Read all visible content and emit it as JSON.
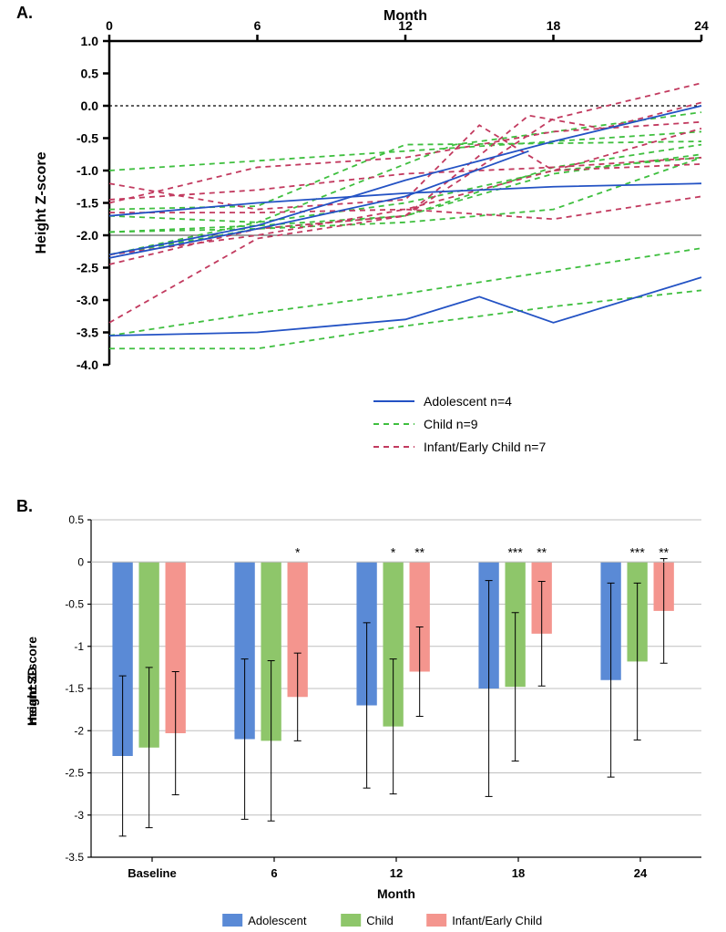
{
  "panelA": {
    "label": "A.",
    "type": "line",
    "x_title": "Month",
    "y_title": "Height Z-score",
    "x_ticks": [
      0,
      6,
      12,
      18,
      24
    ],
    "y_ticks": [
      1.0,
      0.5,
      0.0,
      -0.5,
      -1.0,
      -1.5,
      -2.0,
      -2.5,
      -3.0,
      -3.5,
      -4.0
    ],
    "y_tick_labels": [
      "1.0",
      "0.5",
      "0.0",
      "-0.5",
      "-1.0",
      "-1.5",
      "-2.0",
      "-2.5",
      "-3.0",
      "-3.5",
      "-4.0"
    ],
    "xlim": [
      0,
      24
    ],
    "ylim": [
      -4.0,
      1.0
    ],
    "zero_line_y": 0.0,
    "zero_line_dash": "3,3",
    "ref_line_y": -2.0,
    "axis_color": "#000000",
    "axis_width": 2.5,
    "line_width": 1.8,
    "series": {
      "adolescent": {
        "color": "#2352c4",
        "dash": "",
        "lines": [
          [
            [
              0,
              -2.35
            ],
            [
              6,
              -1.9
            ],
            [
              12,
              -1.4
            ],
            [
              17,
              -0.7
            ]
          ],
          [
            [
              0,
              -1.7
            ],
            [
              6,
              -1.5
            ],
            [
              12,
              -1.35
            ],
            [
              18,
              -1.25
            ],
            [
              24,
              -1.2
            ]
          ],
          [
            [
              0,
              -2.3
            ],
            [
              6,
              -1.85
            ],
            [
              12,
              -1.15
            ],
            [
              18,
              -0.55
            ],
            [
              24,
              0.0
            ]
          ],
          [
            [
              0,
              -3.55
            ],
            [
              6,
              -3.5
            ],
            [
              12,
              -3.3
            ],
            [
              15,
              -2.95
            ],
            [
              18,
              -3.35
            ],
            [
              24,
              -2.65
            ]
          ]
        ]
      },
      "child": {
        "color": "#3fbf3f",
        "dash": "6,5",
        "lines": [
          [
            [
              0,
              -1.0
            ],
            [
              6,
              -0.85
            ],
            [
              12,
              -0.7
            ],
            [
              18,
              -0.55
            ],
            [
              24,
              -0.4
            ]
          ],
          [
            [
              0,
              -1.7
            ],
            [
              6,
              -1.8
            ],
            [
              12,
              -1.5
            ],
            [
              18,
              -1.0
            ],
            [
              24,
              -0.8
            ]
          ],
          [
            [
              0,
              -1.95
            ],
            [
              6,
              -1.85
            ],
            [
              12,
              -1.7
            ],
            [
              18,
              -1.05
            ],
            [
              24,
              -0.75
            ]
          ],
          [
            [
              0,
              -1.95
            ],
            [
              6,
              -1.9
            ],
            [
              12,
              -1.8
            ],
            [
              18,
              -1.6
            ],
            [
              24,
              -0.8
            ]
          ],
          [
            [
              0,
              -1.6
            ],
            [
              6,
              -1.55
            ],
            [
              12,
              -0.6
            ],
            [
              18,
              -0.58
            ],
            [
              24,
              -0.55
            ]
          ],
          [
            [
              0,
              -3.55
            ],
            [
              6,
              -3.2
            ],
            [
              12,
              -2.9
            ],
            [
              18,
              -2.55
            ],
            [
              24,
              -2.2
            ]
          ],
          [
            [
              0,
              -3.75
            ],
            [
              6,
              -3.75
            ],
            [
              12,
              -3.4
            ],
            [
              18,
              -3.1
            ],
            [
              24,
              -2.85
            ]
          ],
          [
            [
              0,
              -2.3
            ],
            [
              6,
              -1.9
            ],
            [
              12,
              -1.7
            ],
            [
              18,
              -0.95
            ],
            [
              24,
              -0.6
            ]
          ],
          [
            [
              0,
              -2.3
            ],
            [
              6,
              -1.8
            ],
            [
              12,
              -0.9
            ],
            [
              14,
              -0.6
            ],
            [
              18,
              -0.4
            ],
            [
              24,
              -0.1
            ]
          ]
        ]
      },
      "infant": {
        "color": "#c23a5f",
        "dash": "6,5",
        "lines": [
          [
            [
              0,
              -1.65
            ],
            [
              6,
              -1.65
            ],
            [
              12,
              -1.6
            ],
            [
              18,
              -1.0
            ],
            [
              24,
              -0.35
            ]
          ],
          [
            [
              0,
              -1.45
            ],
            [
              6,
              -1.3
            ],
            [
              12,
              -1.05
            ],
            [
              18,
              -0.95
            ],
            [
              24,
              -0.8
            ]
          ],
          [
            [
              0,
              -1.2
            ],
            [
              6,
              -1.6
            ],
            [
              12,
              -1.45
            ],
            [
              15,
              -0.3
            ],
            [
              18,
              -1.0
            ],
            [
              24,
              -0.9
            ]
          ],
          [
            [
              0,
              -2.3
            ],
            [
              6,
              -2.0
            ],
            [
              12,
              -1.6
            ],
            [
              18,
              -1.75
            ],
            [
              24,
              -1.4
            ]
          ],
          [
            [
              0,
              -2.45
            ],
            [
              6,
              -1.9
            ],
            [
              12,
              -1.7
            ],
            [
              17,
              -0.15
            ],
            [
              20,
              -0.35
            ],
            [
              24,
              0.05
            ]
          ],
          [
            [
              0,
              -3.35
            ],
            [
              6,
              -2.05
            ],
            [
              12,
              -1.7
            ],
            [
              18,
              -0.2
            ],
            [
              24,
              0.35
            ]
          ],
          [
            [
              0,
              -1.5
            ],
            [
              6,
              -0.95
            ],
            [
              12,
              -0.8
            ],
            [
              18,
              -0.4
            ],
            [
              24,
              -0.25
            ]
          ]
        ]
      }
    },
    "legend": [
      {
        "label": "Adolescent  n=4",
        "color": "#2352c4",
        "dash": ""
      },
      {
        "label": "Child  n=9",
        "color": "#3fbf3f",
        "dash": "6,5"
      },
      {
        "label": "Infant/Early Child  n=7",
        "color": "#c23a5f",
        "dash": "6,5"
      }
    ]
  },
  "panelB": {
    "label": "B.",
    "type": "bar",
    "x_title": "Month",
    "y_title": "Height Z-score\nmean±SD",
    "categories": [
      "Baseline",
      "6",
      "12",
      "18",
      "24"
    ],
    "y_ticks": [
      0.5,
      0,
      -0.5,
      -1,
      -1.5,
      -2,
      -2.5,
      -3,
      -3.5
    ],
    "y_tick_labels": [
      "0.5",
      "0",
      "-0.5",
      "-1",
      "-1.5",
      "-2",
      "-2.5",
      "-3",
      "-3.5"
    ],
    "ylim": [
      -3.5,
      0.5
    ],
    "axis_color": "#000000",
    "axis_width": 1.2,
    "grid_color": "#bfbfbf",
    "grid_width": 1,
    "bar_group_gap": 0.35,
    "bar_inner_gap": 0.05,
    "error_cap_width": 8,
    "groups": [
      {
        "key": "adolescent",
        "label": "Adolescent",
        "color": "#5a8ad6"
      },
      {
        "key": "child",
        "label": "Child",
        "color": "#8ec66a"
      },
      {
        "key": "infant",
        "label": "Infant/Early Child",
        "color": "#f4958e"
      }
    ],
    "data": {
      "adolescent": {
        "means": [
          -2.3,
          -2.1,
          -1.7,
          -1.5,
          -1.4
        ],
        "sd": [
          0.95,
          0.95,
          0.98,
          1.28,
          1.15
        ]
      },
      "child": {
        "means": [
          -2.2,
          -2.12,
          -1.95,
          -1.48,
          -1.18
        ],
        "sd": [
          0.95,
          0.95,
          0.8,
          0.88,
          0.93
        ]
      },
      "infant": {
        "means": [
          -2.03,
          -1.6,
          -1.3,
          -0.85,
          -0.58
        ],
        "sd": [
          0.73,
          0.52,
          0.53,
          0.62,
          0.62
        ]
      }
    },
    "significance": [
      {
        "cat": 1,
        "group": 2,
        "text": "*"
      },
      {
        "cat": 2,
        "group": 1,
        "text": "*"
      },
      {
        "cat": 2,
        "group": 2,
        "text": "**"
      },
      {
        "cat": 3,
        "group": 1,
        "text": "***"
      },
      {
        "cat": 3,
        "group": 2,
        "text": "**"
      },
      {
        "cat": 4,
        "group": 1,
        "text": "***"
      },
      {
        "cat": 4,
        "group": 2,
        "text": "**"
      }
    ]
  }
}
